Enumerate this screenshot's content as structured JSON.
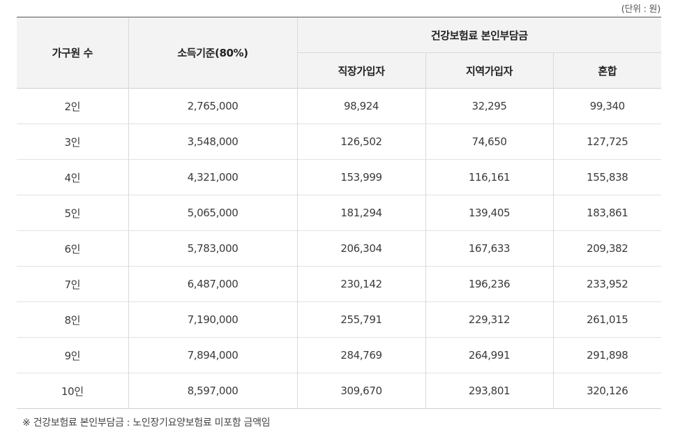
{
  "unit_label": "(단위 : 원)",
  "table": {
    "headers": {
      "household": "가구원 수",
      "income": "소득기준(80%)",
      "premium_group": "건강보험료 본인부담금",
      "employee": "직장가입자",
      "regional": "지역가입자",
      "mixed": "혼합"
    },
    "rows": [
      {
        "household": "2인",
        "income": "2,765,000",
        "employee": "98,924",
        "regional": "32,295",
        "mixed": "99,340"
      },
      {
        "household": "3인",
        "income": "3,548,000",
        "employee": "126,502",
        "regional": "74,650",
        "mixed": "127,725"
      },
      {
        "household": "4인",
        "income": "4,321,000",
        "employee": "153,999",
        "regional": "116,161",
        "mixed": "155,838"
      },
      {
        "household": "5인",
        "income": "5,065,000",
        "employee": "181,294",
        "regional": "139,405",
        "mixed": "183,861"
      },
      {
        "household": "6인",
        "income": "5,783,000",
        "employee": "206,304",
        "regional": "167,633",
        "mixed": "209,382"
      },
      {
        "household": "7인",
        "income": "6,487,000",
        "employee": "230,142",
        "regional": "196,236",
        "mixed": "233,952"
      },
      {
        "household": "8인",
        "income": "7,190,000",
        "employee": "255,791",
        "regional": "229,312",
        "mixed": "261,015"
      },
      {
        "household": "9인",
        "income": "7,894,000",
        "employee": "284,769",
        "regional": "264,991",
        "mixed": "291,898"
      },
      {
        "household": "10인",
        "income": "8,597,000",
        "employee": "309,670",
        "regional": "293,801",
        "mixed": "320,126"
      }
    ]
  },
  "footnote": "※ 건강보험료 본인부담금 : 노인장기요양보험료 미포함 금액임"
}
